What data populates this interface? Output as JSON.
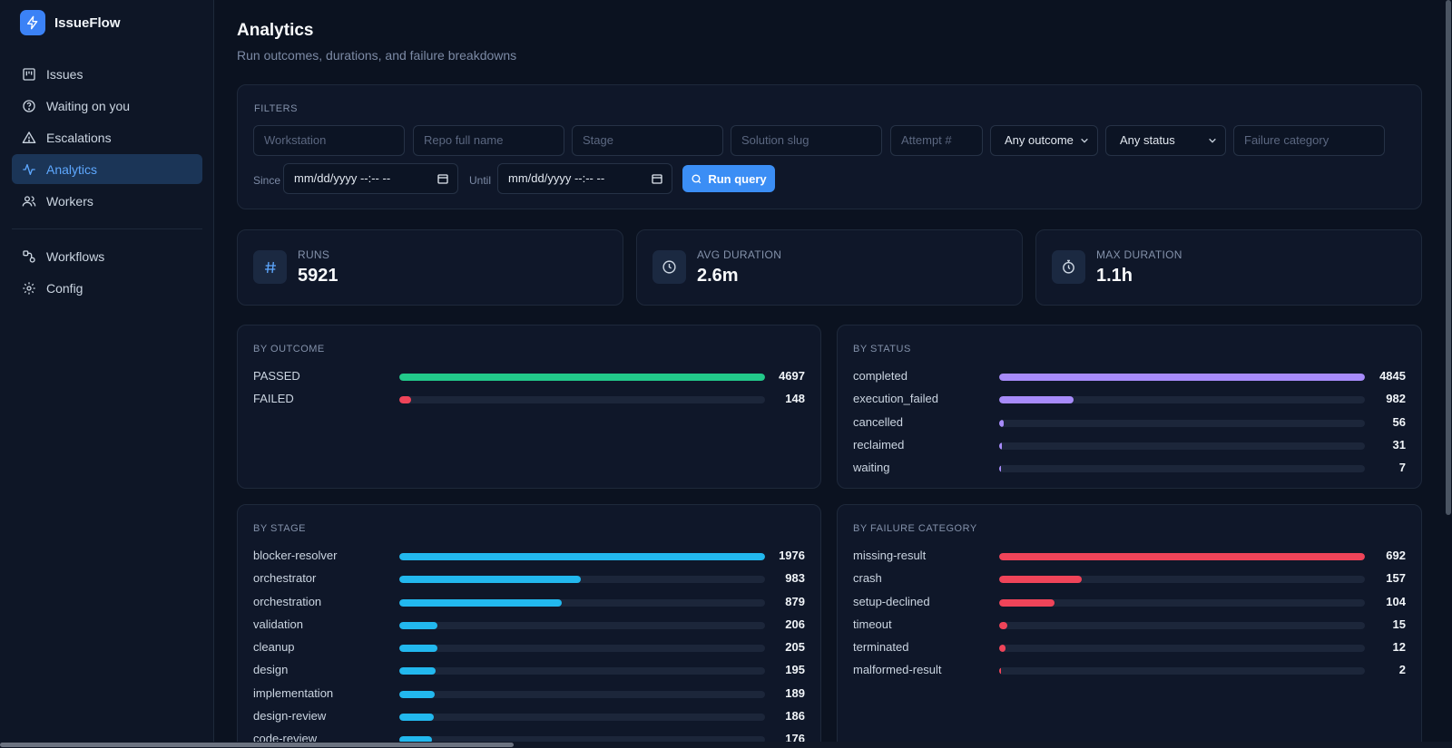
{
  "app": {
    "name": "IssueFlow"
  },
  "sidebar": {
    "items": [
      {
        "label": "Issues",
        "icon": "kanban-icon"
      },
      {
        "label": "Waiting on you",
        "icon": "help-circle-icon"
      },
      {
        "label": "Escalations",
        "icon": "alert-triangle-icon"
      },
      {
        "label": "Analytics",
        "icon": "activity-icon",
        "active": true
      },
      {
        "label": "Workers",
        "icon": "users-icon"
      }
    ],
    "secondary": [
      {
        "label": "Workflows",
        "icon": "workflow-icon"
      },
      {
        "label": "Config",
        "icon": "gear-icon"
      }
    ]
  },
  "page": {
    "title": "Analytics",
    "subtitle": "Run outcomes, durations, and failure breakdowns"
  },
  "filters": {
    "label": "FILTERS",
    "workstation_placeholder": "Workstation",
    "repo_placeholder": "Repo full name",
    "stage_placeholder": "Stage",
    "solution_placeholder": "Solution slug",
    "attempt_placeholder": "Attempt #",
    "outcome_value": "Any outcome",
    "status_value": "Any status",
    "failure_placeholder": "Failure category",
    "since_label": "Since",
    "since_value": "mm/dd/yyyy --:-- --",
    "until_label": "Until",
    "until_value": "mm/dd/yyyy --:-- --",
    "run_button": "Run query"
  },
  "stats": {
    "runs": {
      "label": "RUNS",
      "value": "5921"
    },
    "avg": {
      "label": "AVG DURATION",
      "value": "2.6m"
    },
    "max": {
      "label": "MAX DURATION",
      "value": "1.1h"
    }
  },
  "breakdowns": {
    "outcome": {
      "title": "BY OUTCOME",
      "color_default": "#22c98a",
      "rows": [
        {
          "name": "PASSED",
          "value": 4697,
          "color": "#22c98a"
        },
        {
          "name": "FAILED",
          "value": 148,
          "color": "#ef4459"
        }
      ]
    },
    "status": {
      "title": "BY STATUS",
      "color": "#a78bfa",
      "rows": [
        {
          "name": "completed",
          "value": 4845
        },
        {
          "name": "execution_failed",
          "value": 982
        },
        {
          "name": "cancelled",
          "value": 56
        },
        {
          "name": "reclaimed",
          "value": 31
        },
        {
          "name": "waiting",
          "value": 7
        }
      ]
    },
    "stage": {
      "title": "BY STAGE",
      "color": "#22b8ee",
      "rows": [
        {
          "name": "blocker-resolver",
          "value": 1976
        },
        {
          "name": "orchestrator",
          "value": 983
        },
        {
          "name": "orchestration",
          "value": 879
        },
        {
          "name": "validation",
          "value": 206
        },
        {
          "name": "cleanup",
          "value": 205
        },
        {
          "name": "design",
          "value": 195
        },
        {
          "name": "implementation",
          "value": 189
        },
        {
          "name": "design-review",
          "value": 186
        },
        {
          "name": "code-review",
          "value": 176
        }
      ]
    },
    "failure": {
      "title": "BY FAILURE CATEGORY",
      "color": "#ef4459",
      "rows": [
        {
          "name": "missing-result",
          "value": 692
        },
        {
          "name": "crash",
          "value": 157
        },
        {
          "name": "setup-declined",
          "value": 104
        },
        {
          "name": "timeout",
          "value": 15
        },
        {
          "name": "terminated",
          "value": 12
        },
        {
          "name": "malformed-result",
          "value": 2
        }
      ]
    }
  }
}
